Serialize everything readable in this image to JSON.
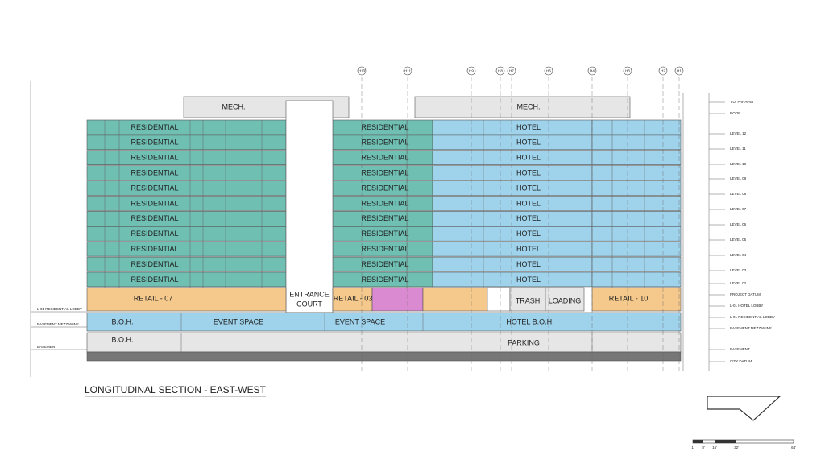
{
  "title": "LONGITUDINAL SECTION - EAST-WEST",
  "mech": [
    "MECH.",
    "MECH."
  ],
  "upper_floors": [
    {
      "left": "RESIDENTIAL",
      "center": "RESIDENTIAL",
      "right": "HOTEL"
    },
    {
      "left": "RESIDENTIAL",
      "center": "RESIDENTIAL",
      "right": "HOTEL"
    },
    {
      "left": "RESIDENTIAL",
      "center": "RESIDENTIAL",
      "right": "HOTEL"
    },
    {
      "left": "RESIDENTIAL",
      "center": "RESIDENTIAL",
      "right": "HOTEL"
    },
    {
      "left": "RESIDENTIAL",
      "center": "RESIDENTIAL",
      "right": "HOTEL"
    },
    {
      "left": "RESIDENTIAL",
      "center": "RESIDENTIAL",
      "right": "HOTEL"
    },
    {
      "left": "RESIDENTIAL",
      "center": "RESIDENTIAL",
      "right": "HOTEL"
    },
    {
      "left": "RESIDENTIAL",
      "center": "RESIDENTIAL",
      "right": "HOTEL"
    },
    {
      "left": "RESIDENTIAL",
      "center": "RESIDENTIAL",
      "right": "HOTEL"
    },
    {
      "left": "RESIDENTIAL",
      "center": "RESIDENTIAL",
      "right": "HOTEL"
    },
    {
      "left": "RESIDENTIAL",
      "center": "RESIDENTIAL",
      "right": "HOTEL"
    }
  ],
  "entrance": [
    "ENTRANCE",
    "COURT"
  ],
  "ground": [
    "RETAIL - 07",
    "RETAIL - 03",
    "TRASH",
    "LOADING",
    "RETAIL - 10"
  ],
  "boh": [
    "B.O.H.",
    "EVENT SPACE",
    "EVENT SPACE",
    "HOTEL B.O.H."
  ],
  "basement": [
    "B.O.H.",
    "PARKING"
  ],
  "grid_lines": [
    "H13",
    "H11",
    "H9",
    "H8",
    "H7",
    "H6",
    "H4",
    "H3",
    "H2",
    "H1"
  ],
  "levels": [
    "T.O. PARAPET",
    "ROOF",
    "LEVEL 12",
    "LEVEL 11",
    "LEVEL 10",
    "LEVEL 09",
    "LEVEL 08",
    "LEVEL 07",
    "LEVEL 06",
    "LEVEL 05",
    "LEVEL 04",
    "LEVEL 03",
    "LEVEL 02",
    "PROJECT DATUM",
    "L-01 HOTEL LOBBY",
    "L-01 RESIDENTIAL LOBBY",
    "BASEMENT MEZZANINE",
    "BASEMENT",
    "CITY DATUM"
  ],
  "left_levels": [
    "L-01 RESIDENTIAL LOBBY",
    "BASEMENT MEZZANINE",
    "BASEMENT"
  ],
  "scale": [
    "1'",
    "8'",
    "16'",
    "32'",
    "64'"
  ]
}
